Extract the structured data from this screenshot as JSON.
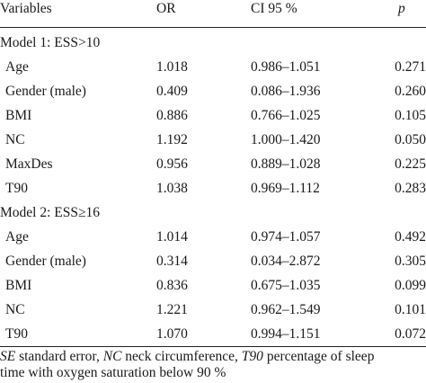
{
  "table": {
    "headers": {
      "variables": "Variables",
      "or": "OR",
      "ci": "CI 95 %",
      "p": "p"
    },
    "groups": [
      {
        "label": "Model 1: ESS>10",
        "rows": [
          {
            "variable": "Age",
            "or": "1.018",
            "ci": "0.986–1.051",
            "p": "0.271"
          },
          {
            "variable": "Gender (male)",
            "or": "0.409",
            "ci": "0.086–1.936",
            "p": "0.260"
          },
          {
            "variable": "BMI",
            "or": "0.886",
            "ci": "0.766–1.025",
            "p": "0.105"
          },
          {
            "variable": "NC",
            "or": "1.192",
            "ci": "1.000–1.420",
            "p": "0.050"
          },
          {
            "variable": "MaxDes",
            "or": "0.956",
            "ci": "0.889–1.028",
            "p": "0.225"
          },
          {
            "variable": "T90",
            "or": "1.038",
            "ci": "0.969–1.112",
            "p": "0.283"
          }
        ]
      },
      {
        "label": "Model 2: ESS≥16",
        "rows": [
          {
            "variable": "Age",
            "or": "1.014",
            "ci": "0.974–1.057",
            "p": "0.492"
          },
          {
            "variable": "Gender (male)",
            "or": "0.314",
            "ci": "0.034–2.872",
            "p": "0.305"
          },
          {
            "variable": "BMI",
            "or": "0.836",
            "ci": "0.675–1.035",
            "p": "0.099"
          },
          {
            "variable": "NC",
            "or": "1.221",
            "ci": "0.962–1.549",
            "p": "0.101"
          },
          {
            "variable": "T90",
            "or": "1.070",
            "ci": "0.994–1.151",
            "p": "0.072"
          }
        ]
      }
    ]
  },
  "footnote": {
    "se_abbr": "SE",
    "se_text": " standard error, ",
    "nc_abbr": "NC",
    "nc_text": " neck circumference, ",
    "t90_abbr": "T90",
    "t90_text": " percentage of sleep",
    "line2": "time with oxygen saturation below 90 %"
  }
}
